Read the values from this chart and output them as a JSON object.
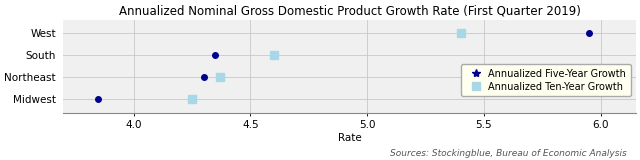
{
  "title": "Annualized Nominal Gross Domestic Product Growth Rate (First Quarter 2019)",
  "xlabel": "Rate",
  "source_text": "Sources: Stockingblue, Bureau of Economic Analysis",
  "regions": [
    "Midwest",
    "Northeast",
    "South",
    "West"
  ],
  "five_year": [
    3.85,
    4.3,
    4.35,
    5.95
  ],
  "ten_year": [
    4.25,
    4.37,
    4.6,
    5.4
  ],
  "dot_color_five": "#00008B",
  "dot_color_ten": "#A8D8E8",
  "xlim": [
    3.7,
    6.15
  ],
  "xticks": [
    4.0,
    4.5,
    5.0,
    5.5,
    6.0
  ],
  "background_color": "#F0F0F0",
  "grid_color": "#C8C8C8",
  "title_fontsize": 8.5,
  "axis_fontsize": 7.5,
  "legend_fontsize": 7.0,
  "source_fontsize": 6.5,
  "legend_bg": "#FFFFF0"
}
